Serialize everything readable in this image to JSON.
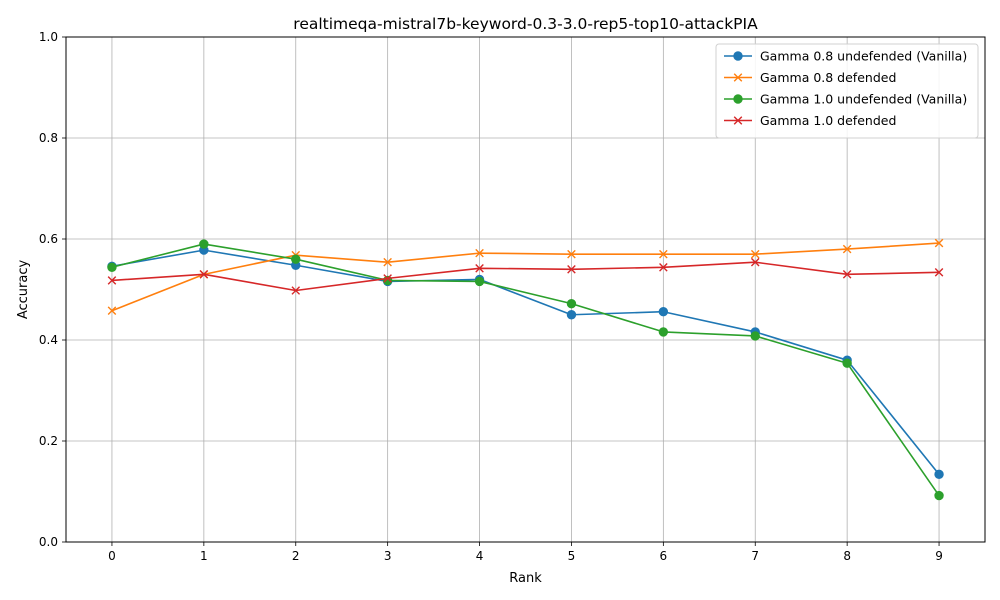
{
  "chart_data": {
    "type": "line",
    "title": "realtimeqa-mistral7b-keyword-0.3-3.0-rep5-top10-attackPIA",
    "xlabel": "Rank",
    "ylabel": "Accuracy",
    "xlim": [
      -0.5,
      9.5
    ],
    "ylim": [
      0.0,
      1.0
    ],
    "x": [
      0,
      1,
      2,
      3,
      4,
      5,
      6,
      7,
      8,
      9
    ],
    "x_ticks": [
      "0",
      "1",
      "2",
      "3",
      "4",
      "5",
      "6",
      "7",
      "8",
      "9"
    ],
    "y_ticks": [
      "0.0",
      "0.2",
      "0.4",
      "0.6",
      "0.8",
      "1.0"
    ],
    "y_tick_values": [
      0.0,
      0.2,
      0.4,
      0.6,
      0.8,
      1.0
    ],
    "grid": true,
    "legend_position": "top-right",
    "series": [
      {
        "name": "Gamma 0.8 undefended (Vanilla)",
        "color": "#1f77b4",
        "marker": "circle",
        "values": [
          0.546,
          0.578,
          0.548,
          0.516,
          0.52,
          0.45,
          0.456,
          0.416,
          0.36,
          0.134
        ]
      },
      {
        "name": "Gamma 0.8 defended",
        "color": "#ff7f0e",
        "marker": "x",
        "values": [
          0.458,
          0.53,
          0.568,
          0.554,
          0.572,
          0.57,
          0.57,
          0.57,
          0.58,
          0.592
        ]
      },
      {
        "name": "Gamma 1.0 undefended (Vanilla)",
        "color": "#2ca02c",
        "marker": "circle",
        "values": [
          0.544,
          0.59,
          0.56,
          0.518,
          0.516,
          0.472,
          0.416,
          0.408,
          0.354,
          0.092
        ]
      },
      {
        "name": "Gamma 1.0 defended",
        "color": "#d62728",
        "marker": "x",
        "values": [
          0.518,
          0.53,
          0.498,
          0.522,
          0.542,
          0.54,
          0.544,
          0.554,
          0.53,
          0.534
        ]
      }
    ]
  }
}
